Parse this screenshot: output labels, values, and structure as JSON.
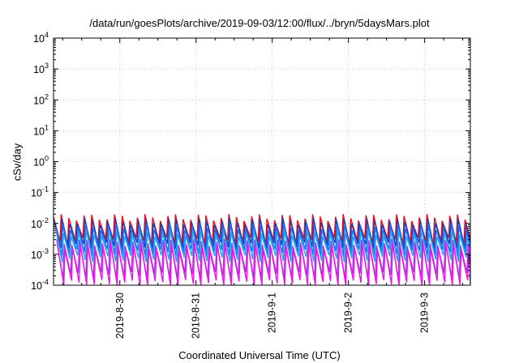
{
  "chart_data": {
    "type": "line",
    "title": "/data/run/goesPlots/archive/2019-09-03/12:00/flux/../bryn/5daysMars.plot",
    "xlabel": "Coordinated Universal Time (UTC)",
    "ylabel": "cSv/day",
    "yscale": "log",
    "ylim": [
      0.0001,
      10000
    ],
    "xlim_days_from_2019_8_29": [
      0.13,
      5.6
    ],
    "x_ticks": [
      {
        "label": "2019-8-30",
        "day": 1
      },
      {
        "label": "2019-8-31",
        "day": 2
      },
      {
        "label": "2019-9-1",
        "day": 3
      },
      {
        "label": "2019-9-2",
        "day": 4
      },
      {
        "label": "2019-9-3",
        "day": 5
      }
    ],
    "y_ticks": [
      {
        "base": "10",
        "exp": "4",
        "value": 10000
      },
      {
        "base": "10",
        "exp": "3",
        "value": 1000
      },
      {
        "base": "10",
        "exp": "2",
        "value": 100
      },
      {
        "base": "10",
        "exp": "1",
        "value": 10
      },
      {
        "base": "10",
        "exp": "0",
        "value": 1
      },
      {
        "base": "10",
        "exp": "-1",
        "value": 0.1
      },
      {
        "base": "10",
        "exp": "-2",
        "value": 0.01
      },
      {
        "base": "10",
        "exp": "-3",
        "value": 0.001
      },
      {
        "base": "10",
        "exp": "-4",
        "value": 0.0001
      }
    ],
    "grid": true,
    "sawtooth_period_days": 0.1,
    "series": [
      {
        "name": "red",
        "color": "#e8101e",
        "peak": 0.016,
        "trough": 0.0026,
        "phase": 0.0
      },
      {
        "name": "navy",
        "color": "#1f3fb8",
        "peak": 0.012,
        "trough": 0.0018,
        "phase": 0.01
      },
      {
        "name": "blue",
        "color": "#1f6fff",
        "peak": 0.008,
        "trough": 0.0011,
        "phase": 0.02
      },
      {
        "name": "light-blue",
        "color": "#22a8f0",
        "peak": 0.005,
        "trough": 0.0007,
        "phase": 0.03
      },
      {
        "name": "purple",
        "color": "#a040d8",
        "peak": 0.0025,
        "trough": 0.0002,
        "phase": 0.04
      },
      {
        "name": "magenta",
        "color": "#ee10ee",
        "peak": 0.0018,
        "trough": 0.00011,
        "phase": 0.05
      }
    ]
  }
}
